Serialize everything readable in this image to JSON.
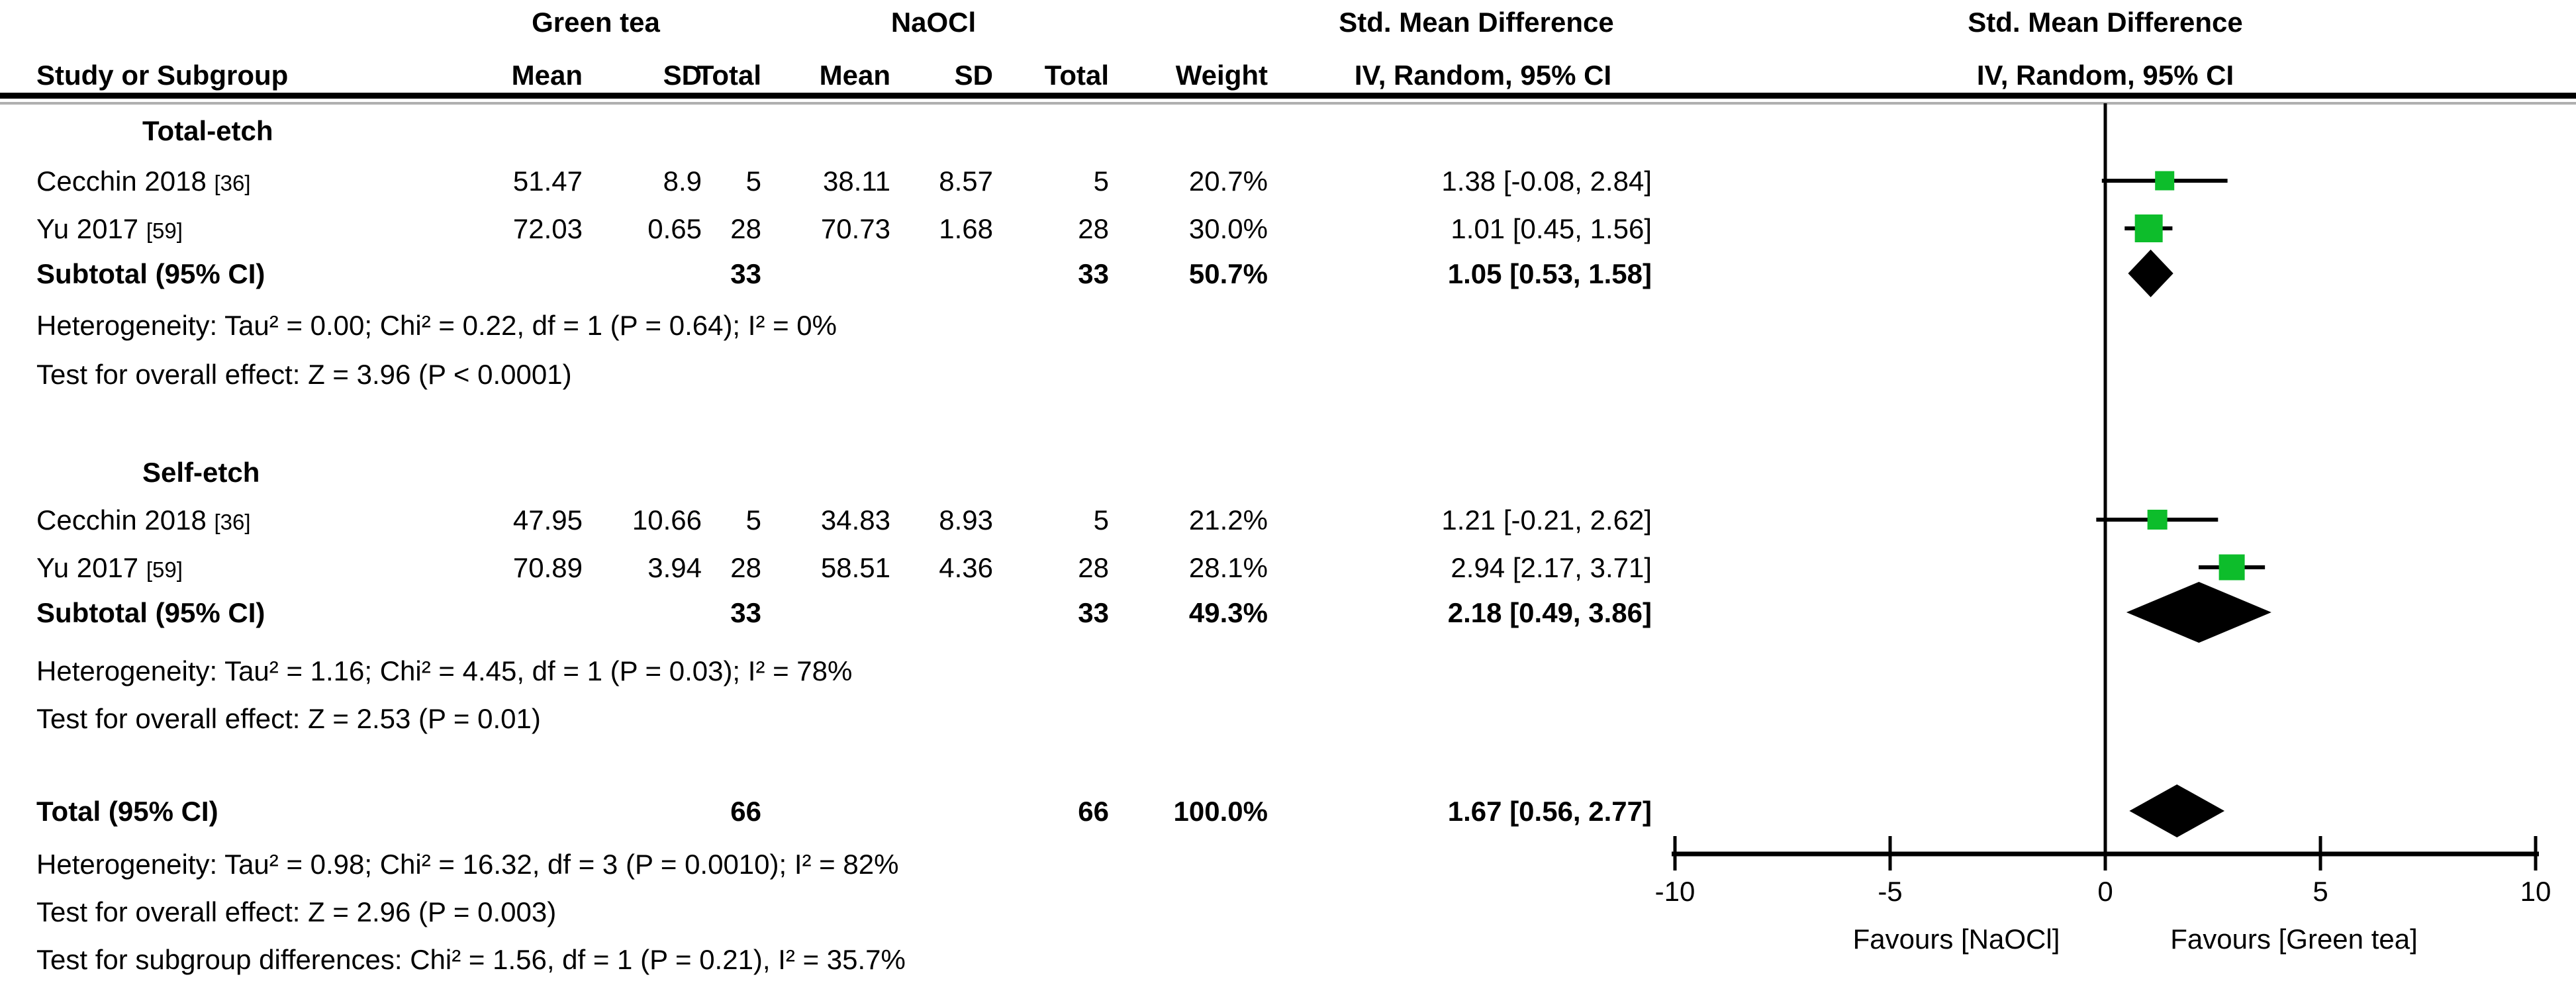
{
  "table": {
    "header": {
      "group1": "Green tea",
      "group2": "NaOCl",
      "smd": "Std. Mean Difference",
      "col_study": "Study or Subgroup",
      "col_mean": "Mean",
      "col_sd": "SD",
      "col_total": "Total",
      "col_weight": "Weight",
      "method": "IV, Random, 95% CI"
    },
    "sections": [
      {
        "title": "Total-etch",
        "rows": [
          {
            "study": "Cecchin 2018",
            "ref": "[36]",
            "gt_mean": "51.47",
            "gt_sd": "8.9",
            "gt_total": "5",
            "na_mean": "38.11",
            "na_sd": "8.57",
            "na_total": "5",
            "weight": "20.7%",
            "ci": "1.38 [-0.08, 2.84]"
          },
          {
            "study": "Yu 2017",
            "ref": "[59]",
            "gt_mean": "72.03",
            "gt_sd": "0.65",
            "gt_total": "28",
            "na_mean": "70.73",
            "na_sd": "1.68",
            "na_total": "28",
            "weight": "30.0%",
            "ci": "1.01 [0.45, 1.56]"
          }
        ],
        "subtotal": {
          "label": "Subtotal (95% CI)",
          "gt_total": "33",
          "na_total": "33",
          "weight": "50.7%",
          "ci": "1.05 [0.53, 1.58]"
        },
        "heterogeneity": "Heterogeneity: Tau² = 0.00; Chi² = 0.22, df = 1 (P = 0.64); I² = 0%",
        "overall_effect": "Test for overall effect: Z = 3.96 (P < 0.0001)"
      },
      {
        "title": "Self-etch",
        "rows": [
          {
            "study": "Cecchin 2018",
            "ref": "[36]",
            "gt_mean": "47.95",
            "gt_sd": "10.66",
            "gt_total": "5",
            "na_mean": "34.83",
            "na_sd": "8.93",
            "na_total": "5",
            "weight": "21.2%",
            "ci": "1.21 [-0.21, 2.62]"
          },
          {
            "study": "Yu 2017",
            "ref": "[59]",
            "gt_mean": "70.89",
            "gt_sd": "3.94",
            "gt_total": "28",
            "na_mean": "58.51",
            "na_sd": "4.36",
            "na_total": "28",
            "weight": "28.1%",
            "ci": "2.94 [2.17, 3.71]"
          }
        ],
        "subtotal": {
          "label": "Subtotal (95% CI)",
          "gt_total": "33",
          "na_total": "33",
          "weight": "49.3%",
          "ci": "2.18 [0.49, 3.86]"
        },
        "heterogeneity": "Heterogeneity: Tau² = 1.16; Chi² = 4.45, df = 1 (P = 0.03); I² = 78%",
        "overall_effect": "Test for overall effect: Z = 2.53 (P = 0.01)"
      }
    ],
    "total": {
      "label": "Total (95% CI)",
      "gt_total": "66",
      "na_total": "66",
      "weight": "100.0%",
      "ci": "1.67 [0.56, 2.77]"
    },
    "total_heterogeneity": "Heterogeneity: Tau² = 0.98; Chi² = 16.32, df = 3 (P = 0.0010); I² = 82%",
    "total_overall_effect": "Test for overall effect: Z = 2.96 (P = 0.003)",
    "subgroup_differences": "Test for subgroup differences: Chi² = 1.56, df = 1 (P = 0.21), I² = 35.7%"
  },
  "chart_data": {
    "type": "scatter",
    "subtype": "forest-plot",
    "effect_measure": "Std. Mean Difference, IV, Random, 95% CI",
    "xlim": [
      -10,
      10
    ],
    "xticks": [
      -10,
      -5,
      0,
      5,
      10
    ],
    "x_axis_labels": {
      "left": "Favours [NaOCl]",
      "right": "Favours [Green tea]"
    },
    "groups": [
      {
        "name": "Total-etch",
        "studies": [
          {
            "label": "Cecchin 2018",
            "est": 1.38,
            "lo": -0.08,
            "hi": 2.84,
            "weight_pct": 20.7
          },
          {
            "label": "Yu 2017",
            "est": 1.01,
            "lo": 0.45,
            "hi": 1.56,
            "weight_pct": 30.0
          }
        ],
        "subtotal": {
          "est": 1.05,
          "lo": 0.53,
          "hi": 1.58
        }
      },
      {
        "name": "Self-etch",
        "studies": [
          {
            "label": "Cecchin 2018",
            "est": 1.21,
            "lo": -0.21,
            "hi": 2.62,
            "weight_pct": 21.2
          },
          {
            "label": "Yu 2017",
            "est": 2.94,
            "lo": 2.17,
            "hi": 3.71,
            "weight_pct": 28.1
          }
        ],
        "subtotal": {
          "est": 2.18,
          "lo": 0.49,
          "hi": 3.86
        }
      }
    ],
    "total": {
      "est": 1.67,
      "lo": 0.56,
      "hi": 2.77
    },
    "marker_color": "#0dbd2b",
    "line_color": "#000000",
    "diamond_color": "#000000"
  }
}
